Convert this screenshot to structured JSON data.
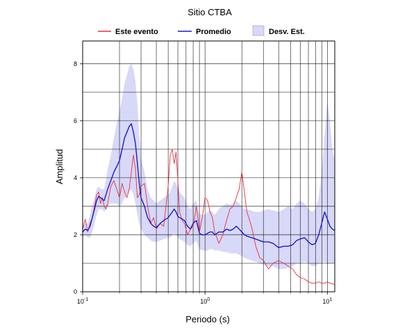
{
  "chart_data": {
    "type": "line",
    "title": "Sitio CTBA",
    "xlabel": "Periodo (s)",
    "ylabel": "Amplitud",
    "xscale": "log",
    "xlim": [
      0.1,
      11.5
    ],
    "ylim": [
      0,
      8.8
    ],
    "grid": true,
    "legend_position": "top",
    "x_ticks": [
      {
        "base": "10",
        "exp": "-1"
      },
      {
        "base": "10",
        "exp": "0"
      },
      {
        "base": "10",
        "exp": "1"
      }
    ],
    "y_ticks": [
      "0",
      "2",
      "4",
      "6",
      "8"
    ],
    "legend": [
      "Este evento",
      "Promedio",
      "Desv. Est."
    ],
    "colors": {
      "event": "#e8303a",
      "mean": "#1a1acc",
      "band": "#d8d8f8"
    },
    "event_curve": {
      "name": "Este evento",
      "x": [
        0.1,
        0.105,
        0.11,
        0.115,
        0.12,
        0.125,
        0.13,
        0.135,
        0.14,
        0.145,
        0.15,
        0.155,
        0.16,
        0.17,
        0.18,
        0.19,
        0.2,
        0.21,
        0.22,
        0.23,
        0.24,
        0.25,
        0.26,
        0.27,
        0.28,
        0.29,
        0.3,
        0.32,
        0.34,
        0.36,
        0.38,
        0.4,
        0.43,
        0.46,
        0.5,
        0.52,
        0.54,
        0.56,
        0.58,
        0.6,
        0.62,
        0.65,
        0.68,
        0.72,
        0.76,
        0.8,
        0.85,
        0.9,
        0.95,
        1.0,
        1.05,
        1.1,
        1.15,
        1.2,
        1.3,
        1.4,
        1.5,
        1.6,
        1.7,
        1.8,
        1.9,
        2.0,
        2.1,
        2.2,
        2.4,
        2.6,
        2.8,
        3.0,
        3.3,
        3.6,
        4.0,
        4.4,
        4.8,
        5.2,
        5.6,
        6.0,
        6.5,
        7.0,
        7.5,
        8.0,
        8.5,
        9.0,
        9.5,
        10.0,
        10.5,
        11.0,
        11.5
      ],
      "y": [
        2.2,
        2.55,
        2.1,
        2.4,
        2.6,
        3.0,
        3.4,
        3.5,
        3.1,
        3.3,
        3.0,
        2.9,
        3.1,
        3.7,
        3.9,
        3.6,
        3.3,
        3.8,
        3.5,
        3.3,
        3.6,
        4.2,
        4.8,
        4.3,
        3.3,
        3.4,
        3.7,
        3.8,
        3.0,
        2.4,
        2.6,
        2.2,
        2.4,
        2.3,
        3.7,
        4.8,
        5.0,
        4.5,
        4.9,
        3.9,
        2.8,
        2.5,
        2.4,
        2.0,
        2.2,
        2.3,
        3.0,
        2.1,
        2.6,
        3.3,
        3.2,
        2.8,
        2.6,
        2.1,
        1.7,
        2.0,
        2.5,
        2.9,
        3.0,
        3.3,
        3.6,
        4.2,
        3.5,
        2.8,
        2.3,
        1.6,
        1.2,
        1.1,
        0.8,
        1.0,
        1.1,
        1.0,
        0.9,
        0.8,
        0.6,
        0.5,
        0.45,
        0.35,
        0.3,
        0.3,
        0.35,
        0.3,
        0.3,
        0.35,
        0.3,
        0.28,
        0.25
      ]
    },
    "mean_curve": {
      "name": "Promedio",
      "x": [
        0.1,
        0.105,
        0.11,
        0.115,
        0.12,
        0.125,
        0.13,
        0.135,
        0.14,
        0.145,
        0.15,
        0.155,
        0.16,
        0.17,
        0.18,
        0.19,
        0.2,
        0.21,
        0.22,
        0.23,
        0.24,
        0.25,
        0.26,
        0.27,
        0.28,
        0.29,
        0.3,
        0.32,
        0.34,
        0.36,
        0.38,
        0.4,
        0.43,
        0.46,
        0.5,
        0.52,
        0.54,
        0.56,
        0.58,
        0.6,
        0.62,
        0.65,
        0.68,
        0.72,
        0.76,
        0.8,
        0.85,
        0.9,
        0.95,
        1.0,
        1.05,
        1.1,
        1.15,
        1.2,
        1.3,
        1.4,
        1.5,
        1.6,
        1.7,
        1.8,
        1.9,
        2.0,
        2.1,
        2.2,
        2.4,
        2.6,
        2.8,
        3.0,
        3.3,
        3.6,
        4.0,
        4.4,
        4.8,
        5.2,
        5.6,
        6.0,
        6.5,
        7.0,
        7.5,
        8.0,
        8.5,
        9.0,
        9.5,
        10.0,
        10.5,
        11.0,
        11.5
      ],
      "y": [
        2.1,
        2.2,
        2.15,
        2.3,
        2.6,
        2.9,
        3.2,
        3.35,
        3.3,
        3.25,
        3.2,
        3.4,
        3.6,
        3.9,
        4.2,
        4.4,
        4.6,
        5.0,
        5.4,
        5.6,
        5.8,
        5.9,
        5.6,
        5.2,
        4.5,
        3.8,
        3.3,
        3.0,
        2.6,
        2.4,
        2.3,
        2.25,
        2.4,
        2.5,
        2.6,
        2.7,
        2.8,
        2.9,
        2.8,
        2.65,
        2.6,
        2.55,
        2.5,
        2.3,
        2.2,
        2.4,
        2.5,
        2.05,
        2.0,
        2.0,
        2.05,
        2.1,
        2.1,
        2.0,
        2.1,
        2.1,
        2.2,
        2.15,
        2.2,
        2.3,
        2.2,
        2.1,
        2.0,
        1.95,
        1.9,
        1.85,
        1.8,
        1.75,
        1.75,
        1.7,
        1.55,
        1.6,
        1.6,
        1.65,
        1.8,
        1.85,
        1.9,
        1.75,
        1.65,
        1.7,
        2.0,
        2.4,
        2.8,
        2.55,
        2.3,
        2.2,
        2.15
      ]
    },
    "std_band": {
      "name": "Desv. Est.",
      "x": [
        0.1,
        0.105,
        0.11,
        0.115,
        0.12,
        0.125,
        0.13,
        0.135,
        0.14,
        0.145,
        0.15,
        0.155,
        0.16,
        0.17,
        0.18,
        0.19,
        0.2,
        0.21,
        0.22,
        0.23,
        0.24,
        0.25,
        0.26,
        0.27,
        0.28,
        0.29,
        0.3,
        0.32,
        0.34,
        0.36,
        0.38,
        0.4,
        0.43,
        0.46,
        0.5,
        0.52,
        0.54,
        0.56,
        0.58,
        0.6,
        0.62,
        0.65,
        0.68,
        0.72,
        0.76,
        0.8,
        0.85,
        0.9,
        0.95,
        1.0,
        1.05,
        1.1,
        1.15,
        1.2,
        1.3,
        1.4,
        1.5,
        1.6,
        1.7,
        1.8,
        1.9,
        2.0,
        2.1,
        2.2,
        2.4,
        2.6,
        2.8,
        3.0,
        3.3,
        3.6,
        4.0,
        4.4,
        4.8,
        5.2,
        5.6,
        6.0,
        6.5,
        7.0,
        7.5,
        8.0,
        8.5,
        9.0,
        9.5,
        10.0,
        10.5,
        11.0,
        11.5
      ],
      "upper": [
        2.3,
        2.4,
        2.4,
        2.7,
        3.0,
        3.3,
        3.6,
        3.7,
        3.6,
        3.6,
        3.6,
        3.9,
        4.3,
        4.8,
        5.4,
        5.9,
        6.3,
        6.8,
        7.3,
        7.6,
        7.9,
        8.0,
        7.8,
        7.4,
        6.6,
        5.5,
        4.7,
        4.2,
        3.6,
        3.3,
        3.2,
        3.1,
        3.2,
        3.3,
        3.4,
        3.5,
        3.7,
        3.9,
        3.8,
        3.6,
        3.5,
        3.4,
        3.3,
        3.0,
        2.9,
        3.1,
        3.2,
        2.75,
        2.7,
        2.7,
        2.8,
        2.85,
        2.8,
        2.7,
        2.9,
        3.0,
        3.1,
        3.05,
        3.1,
        3.2,
        3.1,
        3.0,
        2.9,
        2.9,
        2.85,
        2.8,
        2.8,
        2.85,
        2.9,
        2.85,
        2.8,
        2.9,
        3.0,
        2.9,
        3.1,
        3.2,
        3.1,
        2.9,
        2.8,
        2.9,
        3.3,
        4.2,
        5.5,
        6.7,
        6.0,
        5.0,
        4.6
      ],
      "lower": [
        1.9,
        2.0,
        1.9,
        1.9,
        2.1,
        2.4,
        2.7,
        2.9,
        2.9,
        2.9,
        2.8,
        2.9,
        3.0,
        3.1,
        3.1,
        3.1,
        3.0,
        3.1,
        3.3,
        3.4,
        3.5,
        3.6,
        3.4,
        3.1,
        2.7,
        2.4,
        2.2,
        2.0,
        1.9,
        1.8,
        1.75,
        1.75,
        1.8,
        1.85,
        1.9,
        1.9,
        2.0,
        2.05,
        2.0,
        1.9,
        1.85,
        1.8,
        1.75,
        1.65,
        1.6,
        1.7,
        1.8,
        1.5,
        1.45,
        1.45,
        1.45,
        1.5,
        1.5,
        1.45,
        1.45,
        1.4,
        1.4,
        1.35,
        1.35,
        1.35,
        1.3,
        1.25,
        1.2,
        1.15,
        1.1,
        1.05,
        1.0,
        0.95,
        0.9,
        0.9,
        0.8,
        0.8,
        0.85,
        0.9,
        1.0,
        1.0,
        1.05,
        1.0,
        0.9,
        0.9,
        1.0,
        1.0,
        1.05,
        1.0,
        1.0,
        1.0,
        1.0
      ]
    }
  }
}
